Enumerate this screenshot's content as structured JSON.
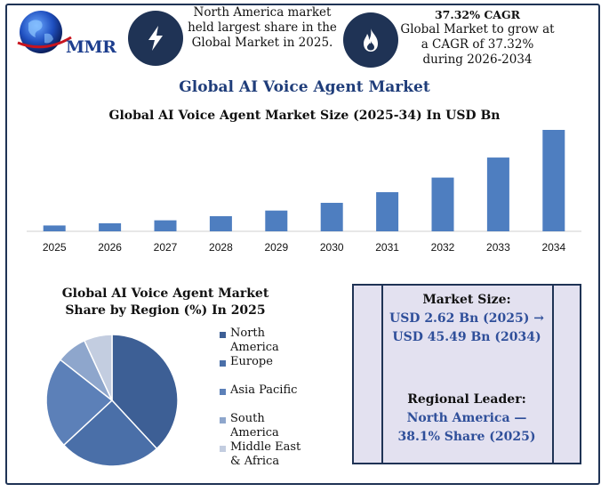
{
  "brand": {
    "logo_text": "MMR"
  },
  "stats": {
    "region_line1": "North America market",
    "region_line2": "held  largest share in the",
    "region_line3": "Global Market in 2025.",
    "cagr_title": "37.32% CAGR",
    "cagr_line1": "Global Market to grow at",
    "cagr_line2": "a CAGR of 37.32%",
    "cagr_line3": "during 2026-2034"
  },
  "main_title": "Global AI Voice Agent Market",
  "chart_data": [
    {
      "type": "bar",
      "title": "Global AI Voice Agent Market Size (2025-34) In USD Bn",
      "categories": [
        "2025",
        "2026",
        "2027",
        "2028",
        "2029",
        "2030",
        "2031",
        "2032",
        "2033",
        "2034"
      ],
      "values": [
        2.62,
        3.6,
        4.94,
        6.78,
        9.31,
        12.78,
        17.55,
        24.1,
        33.09,
        45.49
      ],
      "ylim": [
        0,
        50
      ],
      "grid": false,
      "color": "#4e7ec0"
    },
    {
      "type": "pie",
      "title_line1": "Global AI Voice Agent Market",
      "title_line2": "Share by Region (%) In 2025",
      "labels": [
        "North America",
        "Europe",
        "Asia Pacific",
        "South America",
        "Middle East & Africa"
      ],
      "legend_lines": [
        [
          "North",
          "America"
        ],
        [
          "Europe"
        ],
        [
          "Asia Pacific"
        ],
        [
          "South",
          "America"
        ],
        [
          "Middle East",
          "& Africa"
        ]
      ],
      "values": [
        38.1,
        25.0,
        22.5,
        7.5,
        6.9
      ],
      "colors": [
        "#3d5f95",
        "#4a6fa8",
        "#5c80b8",
        "#8ea6cc",
        "#c3cde0"
      ],
      "legend_position": "right"
    }
  ],
  "info_box": {
    "market_size_label": "Market Size:",
    "market_size_line1": "USD 2.62 Bn (2025) →",
    "market_size_line2": "USD 45.49 Bn (2034)",
    "leader_label": "Regional Leader:",
    "leader_line1": "North America —",
    "leader_line2": "38.1% Share (2025)"
  },
  "icons": [
    "globe-icon",
    "lightning-icon",
    "flame-icon"
  ]
}
